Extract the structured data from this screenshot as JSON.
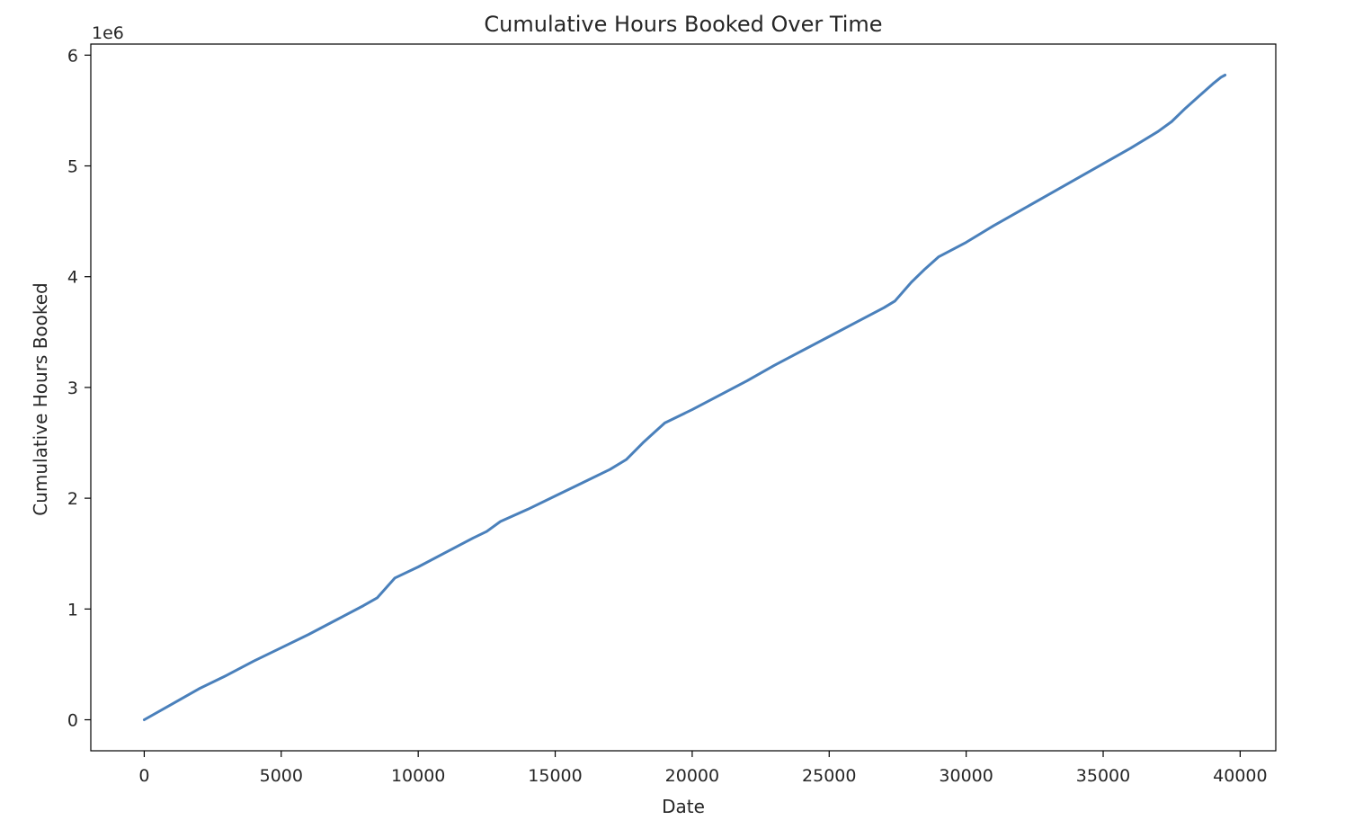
{
  "chart_data": {
    "type": "line",
    "title": "Cumulative Hours Booked Over Time",
    "xlabel": "Date",
    "ylabel": "Cumulative Hours Booked",
    "y_offset_label": "1e6",
    "xlim": [
      -1950,
      41300
    ],
    "ylim": [
      -0.28,
      6.1
    ],
    "x_ticks": [
      0,
      5000,
      10000,
      15000,
      20000,
      25000,
      30000,
      35000,
      40000
    ],
    "x_tick_labels": [
      "0",
      "5000",
      "10000",
      "15000",
      "20000",
      "25000",
      "30000",
      "35000",
      "40000"
    ],
    "y_ticks": [
      0,
      1,
      2,
      3,
      4,
      5,
      6
    ],
    "y_tick_labels": [
      "0",
      "1",
      "2",
      "3",
      "4",
      "5",
      "6"
    ],
    "grid": false,
    "line_color": "#4a80bb",
    "series": [
      {
        "x": [
          0,
          1000,
          2000,
          3000,
          4000,
          5000,
          6000,
          7000,
          8000,
          8500,
          9150,
          10000,
          11000,
          12000,
          12500,
          13000,
          14000,
          15000,
          16000,
          17000,
          17600,
          18200,
          18600,
          19000,
          20000,
          21000,
          22000,
          23000,
          24000,
          25000,
          26000,
          27000,
          27400,
          28000,
          28500,
          29000,
          30000,
          31000,
          32000,
          33000,
          34000,
          35000,
          36000,
          37000,
          37500,
          38000,
          38500,
          39000,
          39300,
          39450
        ],
        "y": [
          0,
          0.14,
          0.28,
          0.4,
          0.53,
          0.65,
          0.77,
          0.9,
          1.03,
          1.1,
          1.28,
          1.38,
          1.51,
          1.64,
          1.7,
          1.79,
          1.9,
          2.02,
          2.14,
          2.26,
          2.35,
          2.5,
          2.59,
          2.68,
          2.8,
          2.93,
          3.06,
          3.2,
          3.33,
          3.46,
          3.59,
          3.72,
          3.78,
          3.95,
          4.07,
          4.18,
          4.31,
          4.46,
          4.6,
          4.74,
          4.88,
          5.02,
          5.16,
          5.31,
          5.4,
          5.52,
          5.63,
          5.74,
          5.8,
          5.82
        ]
      }
    ]
  }
}
